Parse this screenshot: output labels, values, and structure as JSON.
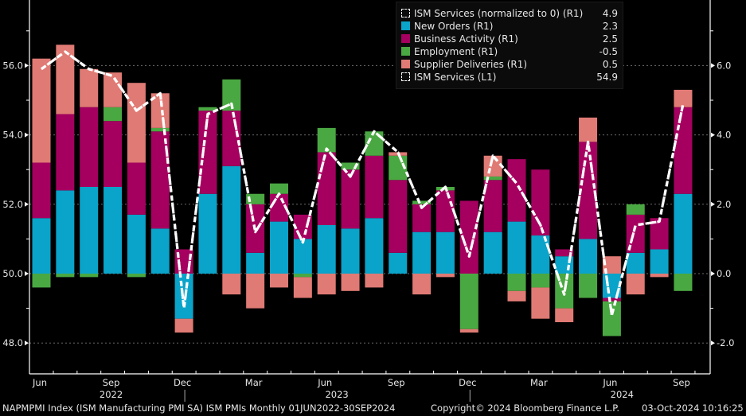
{
  "chart_data": {
    "type": "bar",
    "stacked": true,
    "title": "",
    "categories": [
      "Jun 2022",
      "Jul 2022",
      "Aug 2022",
      "Sep 2022",
      "Oct 2022",
      "Nov 2022",
      "Dec 2022",
      "Jan 2023",
      "Feb 2023",
      "Mar 2023",
      "Apr 2023",
      "May 2023",
      "Jun 2023",
      "Jul 2023",
      "Aug 2023",
      "Sep 2023",
      "Oct 2023",
      "Nov 2023",
      "Dec 2023",
      "Jan 2024",
      "Feb 2024",
      "Mar 2024",
      "Apr 2024",
      "May 2024",
      "Jun 2024",
      "Jul 2024",
      "Aug 2024",
      "Sep 2024"
    ],
    "series": [
      {
        "name": "New Orders (R1)",
        "axis": "right",
        "color": "#0aa3c9",
        "values": [
          1.6,
          2.4,
          2.5,
          2.5,
          1.7,
          1.3,
          -1.3,
          2.3,
          3.1,
          0.6,
          1.5,
          1.0,
          1.4,
          1.3,
          1.6,
          0.6,
          1.2,
          1.2,
          0.0,
          1.2,
          1.5,
          1.1,
          0.5,
          1.0,
          -0.7,
          0.6,
          0.7,
          2.3
        ]
      },
      {
        "name": "Business Activity (R1)",
        "axis": "right",
        "color": "#a5005f",
        "values": [
          1.6,
          2.2,
          2.3,
          1.9,
          1.5,
          2.8,
          0.7,
          2.4,
          1.6,
          1.4,
          0.8,
          0.7,
          2.1,
          1.7,
          1.8,
          2.1,
          0.8,
          1.2,
          2.1,
          1.5,
          1.8,
          1.9,
          0.2,
          2.8,
          -0.1,
          1.1,
          0.9,
          2.5
        ]
      },
      {
        "name": "Employment (R1)",
        "axis": "right",
        "color": "#4aa842",
        "values": [
          -0.4,
          -0.1,
          -0.1,
          0.4,
          -0.1,
          0.1,
          0.0,
          0.1,
          0.9,
          0.3,
          0.3,
          -0.1,
          0.7,
          0.2,
          0.7,
          0.7,
          0.1,
          0.1,
          -1.6,
          0.1,
          -0.5,
          -0.4,
          -1.0,
          -0.7,
          -1.0,
          0.3,
          0.0,
          -0.5
        ]
      },
      {
        "name": "Supplier Deliveries (R1)",
        "axis": "right",
        "color": "#e07a74",
        "values": [
          3.0,
          2.0,
          1.1,
          1.0,
          2.3,
          1.0,
          -0.4,
          0.0,
          -0.6,
          -1.0,
          -0.4,
          -0.6,
          -0.6,
          -0.5,
          -0.4,
          0.1,
          -0.6,
          -0.1,
          -0.1,
          0.6,
          -0.3,
          -0.9,
          -0.4,
          0.7,
          0.5,
          -0.6,
          -0.1,
          0.5
        ]
      }
    ],
    "lines": [
      {
        "name": "ISM Services (normalized to 0) (R1)",
        "axis": "right",
        "style": "dashed",
        "color": "#ffffff",
        "values": [
          5.9,
          6.4,
          5.9,
          5.7,
          4.7,
          5.2,
          -1.0,
          4.6,
          4.9,
          1.2,
          2.3,
          0.9,
          3.6,
          2.8,
          4.1,
          3.5,
          1.9,
          2.5,
          0.5,
          3.4,
          2.6,
          1.4,
          -0.6,
          3.8,
          -1.2,
          1.4,
          1.5,
          4.9
        ]
      },
      {
        "name": "ISM Services (L1)",
        "axis": "left",
        "style": "dashed",
        "color": "#ffffff",
        "values": [
          55.9,
          56.4,
          55.9,
          55.7,
          54.7,
          55.2,
          49.0,
          54.6,
          54.9,
          51.2,
          52.3,
          50.9,
          53.6,
          52.8,
          54.1,
          53.5,
          51.9,
          52.5,
          50.5,
          53.4,
          52.6,
          51.4,
          49.4,
          53.8,
          48.8,
          51.4,
          51.5,
          54.9
        ]
      }
    ],
    "left_axis": {
      "ylim": [
        46.8,
        57.8
      ],
      "ticks": [
        "56.0",
        "54.0",
        "52.0",
        "50.0",
        "48.0"
      ]
    },
    "right_axis": {
      "ylim": [
        -2.9,
        8.1
      ],
      "ticks": [
        "6.0",
        "4.0",
        "2.0",
        "0.0",
        "-2.0"
      ]
    },
    "x_tick_labels": [
      "Jun",
      "Sep",
      "Dec",
      "Mar",
      "Jun",
      "Sep",
      "Dec",
      "Mar",
      "Jun",
      "Sep"
    ],
    "x_year_labels": [
      "2022",
      "2023",
      "2024"
    ],
    "grid": true,
    "legend_placement": "top-right",
    "legend": [
      {
        "label": "ISM Services (normalized to 0) (R1)",
        "value": "4.9",
        "swatch": "dashed",
        "color": "#ffffff"
      },
      {
        "label": "New Orders (R1)",
        "value": "2.3",
        "swatch": "solid",
        "color": "#0aa3c9"
      },
      {
        "label": "Business Activity (R1)",
        "value": "2.5",
        "swatch": "solid",
        "color": "#a5005f"
      },
      {
        "label": "Employment (R1)",
        "value": "-0.5",
        "swatch": "solid",
        "color": "#4aa842"
      },
      {
        "label": "Supplier Deliveries (R1)",
        "value": "0.5",
        "swatch": "solid",
        "color": "#e07a74"
      },
      {
        "label": "ISM Services (L1)",
        "value": "54.9",
        "swatch": "dashed",
        "color": "#ffffff"
      }
    ]
  },
  "footer": {
    "description": "NAPMPMI Index (ISM Manufacturing PMI SA) ISM PMIs  Monthly 01JUN2022-30SEP2024",
    "copyright": "Copyright© 2024 Bloomberg Finance L.P.",
    "timestamp": "03-Oct-2024 10:16:25"
  }
}
